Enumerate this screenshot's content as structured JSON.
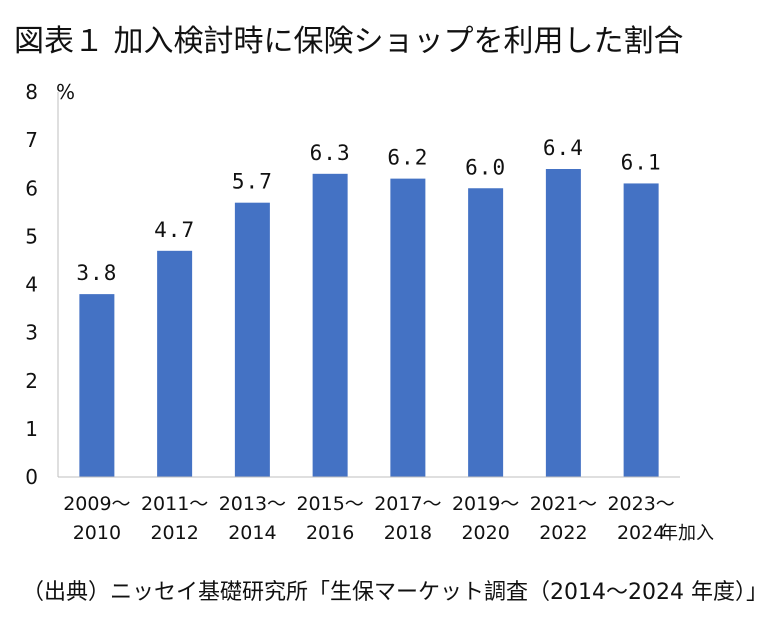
{
  "title": "図表１ 加入検討時に保険ショップを利用した割合",
  "unit_label": "%",
  "x_unit_label": "年加入",
  "source": "（出典）ニッセイ基礎研究所「生保マーケット調査（2014～2024 年度）」",
  "colors": {
    "bar": "#4472c4",
    "axis": "#bfbfbf"
  },
  "chart_data": {
    "type": "bar",
    "categories": [
      [
        "2009～",
        "2010"
      ],
      [
        "2011～",
        "2012"
      ],
      [
        "2013～",
        "2014"
      ],
      [
        "2015～",
        "2016"
      ],
      [
        "2017～",
        "2018"
      ],
      [
        "2019～",
        "2020"
      ],
      [
        "2021～",
        "2022"
      ],
      [
        "2023～",
        "2024"
      ]
    ],
    "values": [
      3.8,
      4.7,
      5.7,
      6.3,
      6.2,
      6.0,
      6.4,
      6.1
    ],
    "data_labels": [
      "3.8",
      "4.7",
      "5.7",
      "6.3",
      "6.2",
      "6.0",
      "6.4",
      "6.1"
    ],
    "yticks": [
      "0",
      "1",
      "2",
      "3",
      "4",
      "5",
      "6",
      "7",
      "8"
    ],
    "ylim": [
      0,
      8
    ],
    "grid": false,
    "legend": "none"
  }
}
